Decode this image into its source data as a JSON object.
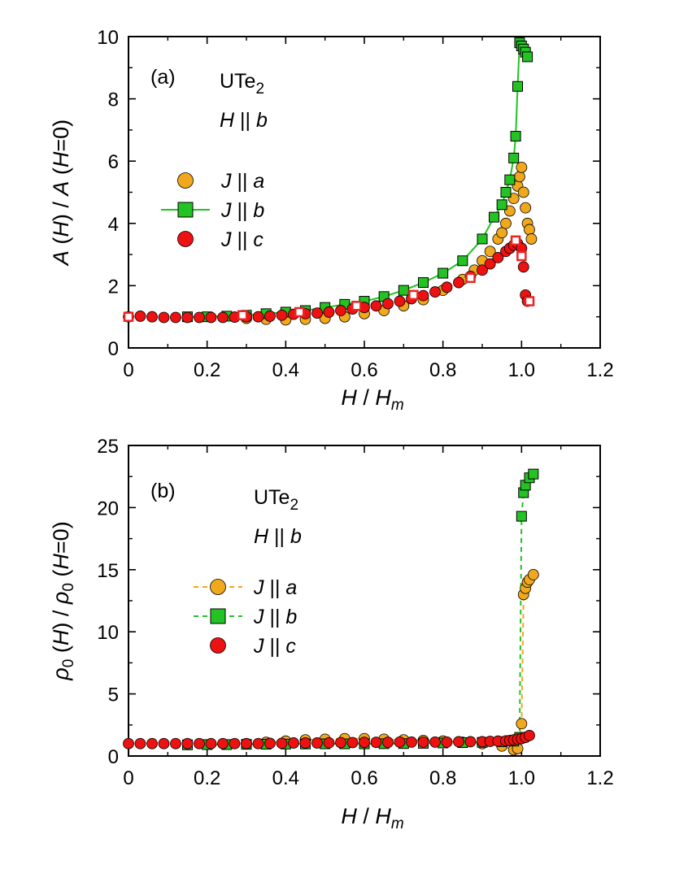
{
  "colors": {
    "J_a": "#f0a81c",
    "J_b": "#22c322",
    "J_c": "#ee1111",
    "open_marker": "#ee2222"
  },
  "chart_data": [
    {
      "type": "scatter",
      "tag": "(a)",
      "annotation": {
        "material": "UTe",
        "subscript": "2",
        "field": "H || b"
      },
      "xlabel": "H / H_m",
      "ylabel": "A (H) / A (H=0)",
      "xlim": [
        0,
        1.2
      ],
      "ylim": [
        0,
        10
      ],
      "xticks": [
        "0",
        "0.2",
        "0.4",
        "0.6",
        "0.8",
        "1.0",
        "1.2"
      ],
      "yticks": [
        "0",
        "2",
        "4",
        "6",
        "8",
        "10"
      ],
      "legend_position": "left",
      "series": [
        {
          "name": "J || a",
          "marker": "circle",
          "line": "none",
          "x": [
            0.3,
            0.35,
            0.4,
            0.45,
            0.5,
            0.55,
            0.6,
            0.65,
            0.7,
            0.75,
            0.8,
            0.85,
            0.88,
            0.9,
            0.92,
            0.94,
            0.95,
            0.96,
            0.97,
            0.98,
            0.99,
            0.995,
            1.0,
            1.005,
            1.01,
            1.015,
            1.02,
            1.025
          ],
          "y": [
            0.95,
            0.92,
            0.9,
            0.92,
            0.95,
            1.0,
            1.1,
            1.2,
            1.35,
            1.55,
            1.85,
            2.2,
            2.5,
            2.8,
            3.1,
            3.5,
            3.7,
            4.0,
            4.4,
            4.8,
            5.2,
            5.5,
            5.8,
            5.0,
            4.5,
            4.0,
            3.8,
            3.5
          ]
        },
        {
          "name": "J || b",
          "marker": "square",
          "line": "solid",
          "x": [
            0.15,
            0.2,
            0.25,
            0.3,
            0.35,
            0.4,
            0.45,
            0.5,
            0.55,
            0.6,
            0.65,
            0.7,
            0.75,
            0.8,
            0.85,
            0.9,
            0.93,
            0.95,
            0.96,
            0.97,
            0.98,
            0.985,
            0.99,
            0.995,
            1.0,
            1.005,
            1.01,
            1.015
          ],
          "y": [
            1.0,
            1.0,
            1.02,
            1.05,
            1.1,
            1.15,
            1.2,
            1.3,
            1.4,
            1.5,
            1.65,
            1.85,
            2.1,
            2.4,
            2.8,
            3.5,
            4.2,
            4.6,
            5.0,
            5.4,
            6.1,
            6.8,
            8.4,
            9.8,
            9.7,
            9.6,
            9.5,
            9.35
          ]
        },
        {
          "name": "J || c",
          "marker": "circle",
          "line": "none",
          "x": [
            0.0,
            0.03,
            0.06,
            0.09,
            0.12,
            0.15,
            0.18,
            0.21,
            0.24,
            0.27,
            0.3,
            0.33,
            0.36,
            0.39,
            0.42,
            0.45,
            0.48,
            0.51,
            0.54,
            0.57,
            0.6,
            0.63,
            0.66,
            0.69,
            0.72,
            0.75,
            0.78,
            0.81,
            0.84,
            0.87,
            0.9,
            0.92,
            0.94,
            0.96,
            0.97,
            0.98,
            0.99,
            1.0,
            1.005,
            1.01,
            1.015
          ],
          "y": [
            1.0,
            1.02,
            1.0,
            0.98,
            0.98,
            0.98,
            0.98,
            0.98,
            0.98,
            0.99,
            1.0,
            1.0,
            1.02,
            1.05,
            1.08,
            1.1,
            1.12,
            1.15,
            1.2,
            1.25,
            1.3,
            1.35,
            1.42,
            1.5,
            1.58,
            1.68,
            1.8,
            1.95,
            2.1,
            2.3,
            2.5,
            2.7,
            2.9,
            3.1,
            3.2,
            3.3,
            3.35,
            3.2,
            2.6,
            1.7,
            1.5
          ]
        },
        {
          "name": "",
          "marker": "open-square",
          "line": "none",
          "x": [
            0.0,
            0.29,
            0.435,
            0.58,
            0.725,
            0.87,
            0.985,
            1.0,
            1.02
          ],
          "y": [
            1.0,
            1.05,
            1.15,
            1.35,
            1.7,
            2.25,
            3.45,
            2.95,
            1.5
          ]
        }
      ]
    },
    {
      "type": "scatter",
      "tag": "(b)",
      "annotation": {
        "material": "UTe",
        "subscript": "2",
        "field": "H || b"
      },
      "xlabel": "H / H_m",
      "ylabel": "ρ0 (H) / ρ0 (H=0)",
      "xlim": [
        0,
        1.2
      ],
      "ylim": [
        0,
        25
      ],
      "xticks": [
        "0",
        "0.2",
        "0.4",
        "0.6",
        "0.8",
        "1.0",
        "1.2"
      ],
      "yticks": [
        "0",
        "5",
        "10",
        "15",
        "20",
        "25"
      ],
      "legend_position": "left",
      "series": [
        {
          "name": "J || a",
          "marker": "circle",
          "line": "dashed",
          "x": [
            0.3,
            0.35,
            0.4,
            0.45,
            0.5,
            0.55,
            0.6,
            0.65,
            0.7,
            0.75,
            0.8,
            0.85,
            0.9,
            0.95,
            0.98,
            0.99,
            1.0,
            1.005,
            1.01,
            1.015,
            1.02,
            1.03
          ],
          "y": [
            1.0,
            1.1,
            1.2,
            1.3,
            1.35,
            1.4,
            1.4,
            1.35,
            1.3,
            1.25,
            1.2,
            1.1,
            1.0,
            0.8,
            0.5,
            0.6,
            2.6,
            13.0,
            13.5,
            14.0,
            14.2,
            14.6
          ]
        },
        {
          "name": "J || b",
          "marker": "square",
          "line": "dashed",
          "x": [
            0.15,
            0.2,
            0.25,
            0.3,
            0.35,
            0.4,
            0.45,
            0.5,
            0.55,
            0.6,
            0.65,
            0.7,
            0.75,
            0.8,
            0.85,
            0.9,
            0.95,
            0.98,
            0.995,
            1.0,
            1.005,
            1.01,
            1.02,
            1.03
          ],
          "y": [
            0.9,
            0.92,
            0.92,
            0.94,
            0.95,
            0.96,
            0.97,
            0.98,
            0.98,
            0.98,
            0.99,
            1.0,
            1.02,
            1.05,
            1.08,
            1.1,
            1.15,
            1.2,
            1.5,
            19.3,
            21.2,
            21.8,
            22.4,
            22.7
          ]
        },
        {
          "name": "J || c",
          "marker": "circle",
          "line": "none",
          "x": [
            0.0,
            0.03,
            0.06,
            0.09,
            0.12,
            0.15,
            0.18,
            0.21,
            0.24,
            0.27,
            0.3,
            0.33,
            0.36,
            0.39,
            0.42,
            0.45,
            0.48,
            0.51,
            0.54,
            0.57,
            0.6,
            0.63,
            0.66,
            0.69,
            0.72,
            0.75,
            0.78,
            0.81,
            0.84,
            0.87,
            0.9,
            0.92,
            0.94,
            0.96,
            0.97,
            0.98,
            0.99,
            1.0,
            1.01,
            1.02
          ],
          "y": [
            1.0,
            1.0,
            1.0,
            1.0,
            1.0,
            1.0,
            1.0,
            1.0,
            1.0,
            1.0,
            1.0,
            1.0,
            1.02,
            1.02,
            1.05,
            1.05,
            1.05,
            1.06,
            1.08,
            1.08,
            1.1,
            1.1,
            1.1,
            1.12,
            1.12,
            1.12,
            1.12,
            1.12,
            1.15,
            1.15,
            1.15,
            1.18,
            1.2,
            1.22,
            1.25,
            1.3,
            1.35,
            1.4,
            1.5,
            1.65
          ]
        }
      ]
    }
  ]
}
